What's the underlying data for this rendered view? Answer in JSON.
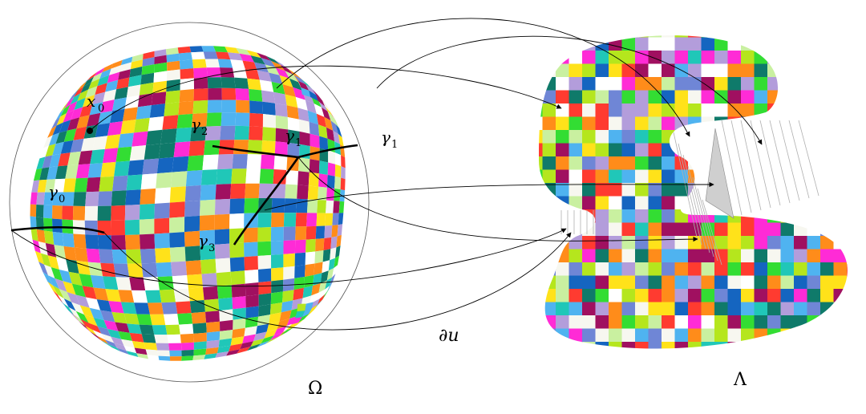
{
  "figure": {
    "domain_label": "Ω",
    "target_label": "Λ",
    "map_label": "∂u",
    "point_label": "x",
    "point_sub": "0",
    "curves": [
      {
        "id": "gamma0",
        "symbol": "γ",
        "sub": "0"
      },
      {
        "id": "gamma1-outer",
        "symbol": "γ",
        "sub": "1"
      },
      {
        "id": "gamma1-inner",
        "symbol": "γ",
        "sub": "1"
      },
      {
        "id": "gamma2",
        "symbol": "γ",
        "sub": "2"
      },
      {
        "id": "gamma3",
        "symbol": "γ",
        "sub": "3"
      }
    ]
  },
  "palette": [
    "#ff3b30",
    "#ff8c1a",
    "#ffe21a",
    "#b5e61d",
    "#33dd33",
    "#0f7a6a",
    "#20c7b8",
    "#4fb3f0",
    "#6f86d6",
    "#ffffff",
    "#ff2bd6",
    "#a01060",
    "#b39ddb",
    "#c9f0a0",
    "#f7f7f0",
    "#1565c0"
  ],
  "colors": {
    "stroke": "#000000",
    "hatch": "#b0b0b0",
    "shade": "#cfcfcf"
  }
}
